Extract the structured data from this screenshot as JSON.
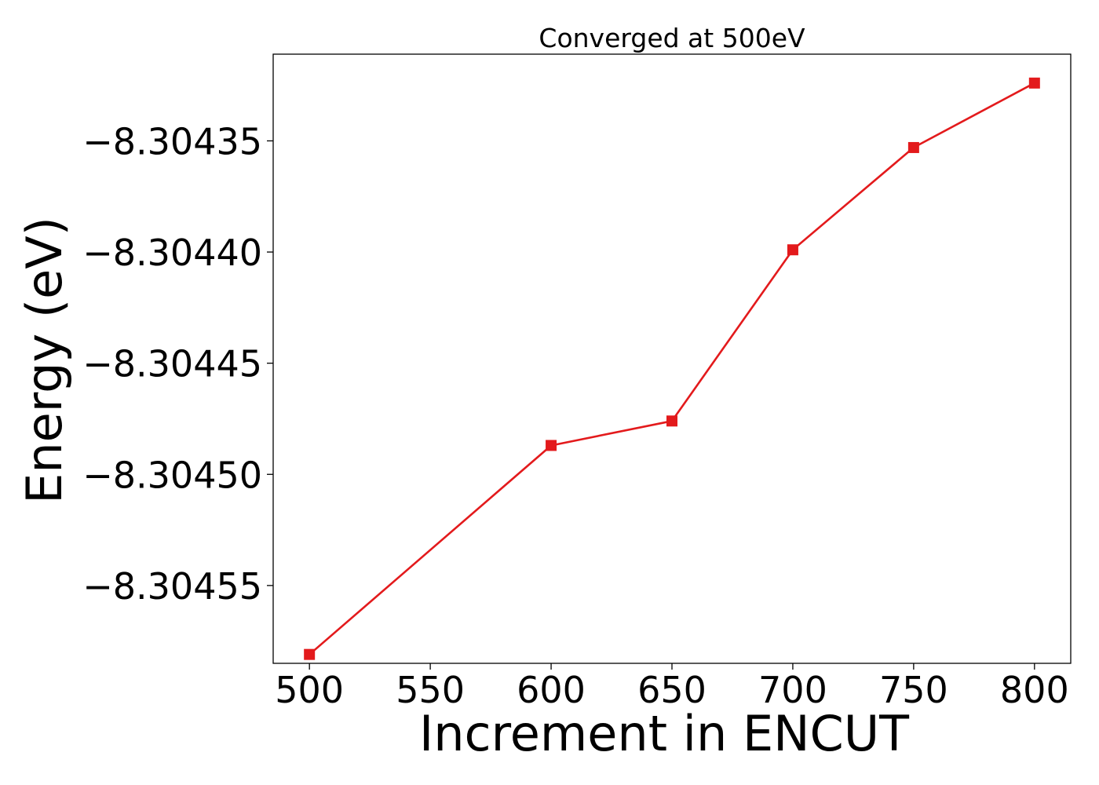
{
  "chart_data": {
    "type": "line",
    "title": "Converged at 500eV",
    "xlabel": "Increment in ENCUT",
    "ylabel": "Energy (eV)",
    "x": [
      500,
      600,
      650,
      700,
      750,
      800
    ],
    "series": [
      {
        "values": [
          -8.304581,
          -8.304487,
          -8.304476,
          -8.304399,
          -8.304353,
          -8.304324
        ],
        "color": "#e31a1c",
        "marker": "square"
      }
    ],
    "xticks": [
      500,
      550,
      600,
      650,
      700,
      750,
      800
    ],
    "xtick_labels": [
      "500",
      "550",
      "600",
      "650",
      "700",
      "750",
      "800"
    ],
    "yticks": [
      -8.30435,
      -8.3044,
      -8.30445,
      -8.3045,
      -8.30455
    ],
    "ytick_labels": [
      "−8.30435",
      "−8.30440",
      "−8.30445",
      "−8.30450",
      "−8.30455"
    ],
    "xlim": [
      485,
      815
    ],
    "ylim": [
      -8.304585,
      -8.304311
    ],
    "grid": false,
    "legend": "none"
  }
}
